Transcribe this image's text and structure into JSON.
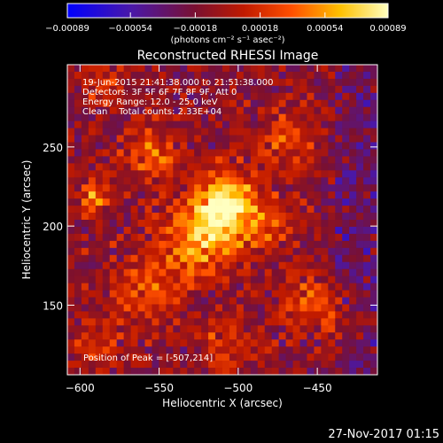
{
  "chart_data": {
    "type": "heatmap",
    "title": "Reconstructed RHESSI Image",
    "xlabel": "Heliocentric X (arcsec)",
    "ylabel": "Heliocentric Y (arcsec)",
    "xlim": [
      -608,
      -412
    ],
    "ylim": [
      106,
      302
    ],
    "x_ticks": [
      -600,
      -550,
      -500,
      -450
    ],
    "y_ticks": [
      150,
      200,
      250
    ],
    "x_tick_labels": [
      "−600",
      "−550",
      "−500",
      "−450"
    ],
    "y_tick_labels": [
      "150",
      "200",
      "250"
    ],
    "colorbar": {
      "min": -0.00089,
      "max": 0.00089,
      "ticks": [
        -0.00089,
        -0.00054,
        -0.00018,
        0.00018,
        0.00054,
        0.00089
      ],
      "tick_labels": [
        "−0.00089",
        "−0.00054",
        "−0.00018",
        "0.00018",
        "0.00054",
        "0.00089"
      ],
      "unit_label": "(photons cm⁻² s⁻¹ asec⁻²)",
      "colormap": [
        "#0000ff",
        "#5a1a8a",
        "#8a1a1a",
        "#e02000",
        "#ff7a00",
        "#ffd000",
        "#ffffb0"
      ]
    },
    "annotations": [
      "19-Jun-2015 21:41:38.000 to 21:51:38.000",
      "Detectors: 3F 5F 6F 7F 8F 9F, Att 0",
      "Energy Range: 12.0 - 25.0 keV",
      "Clean    Total counts: 2.33E+04"
    ],
    "peak_label": "Position of Peak = [-507,214]",
    "peak_position": [
      -507,
      214
    ],
    "sources": [
      {
        "x": -507,
        "y": 214,
        "r": 20,
        "amp": 0.00089
      },
      {
        "x": -525,
        "y": 190,
        "r": 24,
        "amp": 0.00062
      },
      {
        "x": -555,
        "y": 245,
        "r": 18,
        "amp": 0.00045
      },
      {
        "x": -592,
        "y": 218,
        "r": 10,
        "amp": 0.0006
      },
      {
        "x": -560,
        "y": 160,
        "r": 22,
        "amp": 0.00038
      },
      {
        "x": -470,
        "y": 255,
        "r": 16,
        "amp": 0.0004
      },
      {
        "x": -480,
        "y": 200,
        "r": 16,
        "amp": 0.00035
      },
      {
        "x": -455,
        "y": 150,
        "r": 16,
        "amp": 0.00045
      },
      {
        "x": -430,
        "y": 140,
        "r": 12,
        "amp": 0.0003
      },
      {
        "x": -505,
        "y": 125,
        "r": 16,
        "amp": 0.00035
      },
      {
        "x": -590,
        "y": 125,
        "r": 14,
        "amp": 0.00035
      },
      {
        "x": -585,
        "y": 290,
        "r": 12,
        "amp": 0.0003
      }
    ]
  },
  "footer": {
    "timestamp": "27-Nov-2017 01:15"
  }
}
